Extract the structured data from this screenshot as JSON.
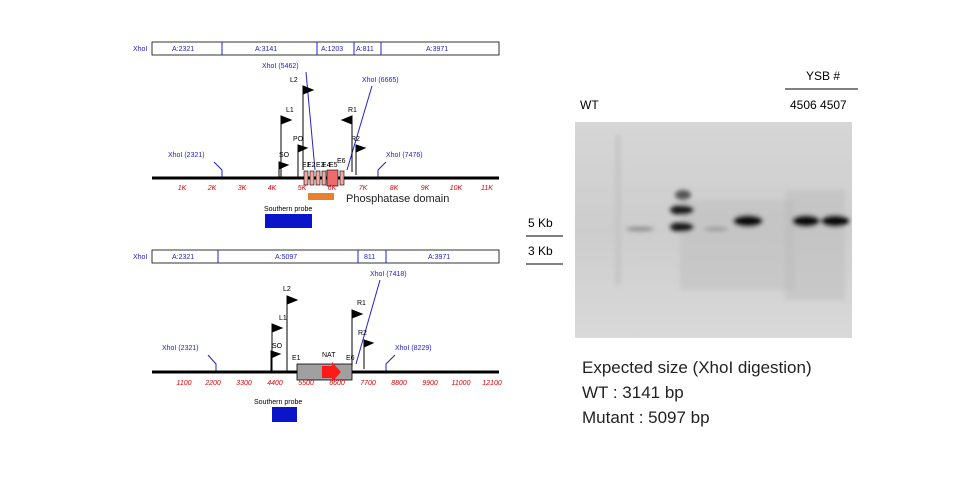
{
  "top_map": {
    "restriction_label": "XhoI",
    "segments": [
      "A:2321",
      "A:3141",
      "A:1203",
      "A:811",
      "A:3971"
    ],
    "sites": [
      "XhoI (5462)",
      "XhoI (6665)",
      "XhoI (2321)",
      "XhoI (7476)"
    ],
    "primers": [
      "L2",
      "L1",
      "PO",
      "SO",
      "R1",
      "R2"
    ],
    "exons": [
      "E1",
      "E2",
      "E3",
      "E4",
      "E5",
      "E6"
    ],
    "ticks": [
      "1K",
      "2K",
      "3K",
      "4K",
      "5K",
      "6K",
      "7K",
      "8K",
      "9K",
      "10K",
      "11K"
    ],
    "domain_label": "Phosphatase domain",
    "probe_label": "Southern probe"
  },
  "bottom_map": {
    "restriction_label": "XhoI",
    "segments": [
      "A:2321",
      "A:5097",
      "811",
      "A:3971"
    ],
    "sites": [
      "XhoI (7418)",
      "XhoI (2321)",
      "XhoI (8229)"
    ],
    "primers": [
      "L2",
      "L1",
      "SO",
      "R1",
      "R2"
    ],
    "features": [
      "E1",
      "NAT",
      "E6"
    ],
    "ticks": [
      "1100",
      "2200",
      "3300",
      "4400",
      "5500",
      "6600",
      "7700",
      "8800",
      "9900",
      "11000",
      "12100"
    ],
    "probe_label": "Southern probe"
  },
  "gel": {
    "header": "YSB #",
    "lanes": "4506 4507",
    "wt_label": "WT",
    "markers": [
      "5 Kb",
      "3 Kb"
    ]
  },
  "caption": {
    "title": "Expected size (XhoI digestion)",
    "lines": [
      "WT : 3141 bp",
      "Mutant : 5097 bp"
    ]
  }
}
